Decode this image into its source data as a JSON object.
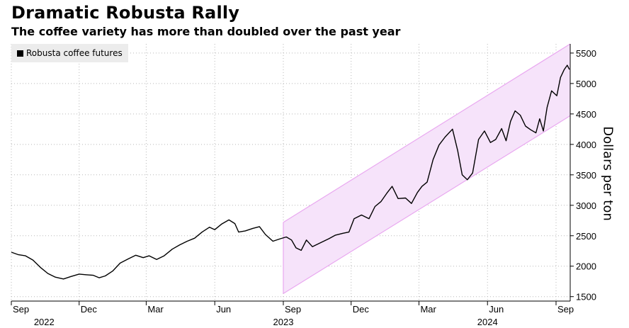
{
  "title": "Dramatic Robusta Rally",
  "subtitle": "The coffee variety has more than doubled over the past year",
  "chart_data": {
    "type": "line",
    "title": "Dramatic Robusta Rally",
    "subtitle": "The coffee variety has more than doubled over the past year",
    "ylabel": "Dollars per ton",
    "xlabel": "",
    "ylim": [
      1450,
      5650
    ],
    "y_ticks": [
      1500,
      2000,
      2500,
      3000,
      3500,
      4000,
      4500,
      5000,
      5500
    ],
    "x_range": [
      "2022-09-01",
      "2024-09-20"
    ],
    "x_ticks": [
      {
        "date": "2022-09-01",
        "label": "Sep"
      },
      {
        "date": "2022-12-01",
        "label": "Dec"
      },
      {
        "date": "2023-03-01",
        "label": "Mar"
      },
      {
        "date": "2023-06-01",
        "label": "Jun"
      },
      {
        "date": "2023-09-01",
        "label": "Sep"
      },
      {
        "date": "2023-12-01",
        "label": "Dec"
      },
      {
        "date": "2024-03-01",
        "label": "Mar"
      },
      {
        "date": "2024-06-01",
        "label": "Jun"
      },
      {
        "date": "2024-09-01",
        "label": "Sep"
      }
    ],
    "year_labels": [
      {
        "date": "2022-10-15",
        "label": "2022"
      },
      {
        "date": "2023-09-01",
        "label": "2023"
      },
      {
        "date": "2024-06-01",
        "label": "2024"
      }
    ],
    "grid": true,
    "legend": {
      "position": "top-left",
      "entries": [
        "Robusta coffee futures"
      ]
    },
    "series": [
      {
        "name": "Robusta coffee futures",
        "color": "#000000",
        "points": [
          [
            "2022-09-01",
            2230
          ],
          [
            "2022-09-10",
            2190
          ],
          [
            "2022-09-20",
            2170
          ],
          [
            "2022-09-30",
            2100
          ],
          [
            "2022-10-10",
            1980
          ],
          [
            "2022-10-20",
            1880
          ],
          [
            "2022-10-30",
            1820
          ],
          [
            "2022-11-10",
            1790
          ],
          [
            "2022-11-20",
            1830
          ],
          [
            "2022-12-01",
            1870
          ],
          [
            "2022-12-10",
            1860
          ],
          [
            "2022-12-20",
            1850
          ],
          [
            "2022-12-28",
            1810
          ],
          [
            "2023-01-05",
            1840
          ],
          [
            "2023-01-15",
            1920
          ],
          [
            "2023-01-25",
            2050
          ],
          [
            "2023-02-05",
            2120
          ],
          [
            "2023-02-15",
            2180
          ],
          [
            "2023-02-25",
            2140
          ],
          [
            "2023-03-05",
            2170
          ],
          [
            "2023-03-15",
            2110
          ],
          [
            "2023-03-25",
            2170
          ],
          [
            "2023-04-05",
            2280
          ],
          [
            "2023-04-15",
            2350
          ],
          [
            "2023-04-25",
            2410
          ],
          [
            "2023-05-05",
            2460
          ],
          [
            "2023-05-15",
            2560
          ],
          [
            "2023-05-25",
            2640
          ],
          [
            "2023-06-01",
            2600
          ],
          [
            "2023-06-10",
            2690
          ],
          [
            "2023-06-20",
            2760
          ],
          [
            "2023-06-28",
            2700
          ],
          [
            "2023-07-03",
            2560
          ],
          [
            "2023-07-12",
            2580
          ],
          [
            "2023-07-22",
            2620
          ],
          [
            "2023-07-31",
            2650
          ],
          [
            "2023-08-08",
            2520
          ],
          [
            "2023-08-18",
            2410
          ],
          [
            "2023-08-28",
            2450
          ],
          [
            "2023-09-05",
            2480
          ],
          [
            "2023-09-12",
            2430
          ],
          [
            "2023-09-18",
            2300
          ],
          [
            "2023-09-25",
            2260
          ],
          [
            "2023-10-02",
            2430
          ],
          [
            "2023-10-10",
            2320
          ],
          [
            "2023-10-20",
            2380
          ],
          [
            "2023-11-01",
            2450
          ],
          [
            "2023-11-10",
            2510
          ],
          [
            "2023-11-20",
            2540
          ],
          [
            "2023-11-28",
            2560
          ],
          [
            "2023-12-05",
            2780
          ],
          [
            "2023-12-15",
            2840
          ],
          [
            "2023-12-25",
            2780
          ],
          [
            "2024-01-02",
            2980
          ],
          [
            "2024-01-10",
            3060
          ],
          [
            "2024-01-18",
            3200
          ],
          [
            "2024-01-25",
            3310
          ],
          [
            "2024-02-02",
            3110
          ],
          [
            "2024-02-12",
            3120
          ],
          [
            "2024-02-20",
            3030
          ],
          [
            "2024-02-28",
            3210
          ],
          [
            "2024-03-05",
            3310
          ],
          [
            "2024-03-12",
            3380
          ],
          [
            "2024-03-20",
            3750
          ],
          [
            "2024-03-28",
            3990
          ],
          [
            "2024-04-05",
            4120
          ],
          [
            "2024-04-15",
            4250
          ],
          [
            "2024-04-22",
            3900
          ],
          [
            "2024-04-28",
            3500
          ],
          [
            "2024-05-05",
            3420
          ],
          [
            "2024-05-12",
            3530
          ],
          [
            "2024-05-20",
            4080
          ],
          [
            "2024-05-28",
            4220
          ],
          [
            "2024-06-05",
            4030
          ],
          [
            "2024-06-12",
            4080
          ],
          [
            "2024-06-20",
            4260
          ],
          [
            "2024-06-26",
            4060
          ],
          [
            "2024-07-02",
            4380
          ],
          [
            "2024-07-08",
            4550
          ],
          [
            "2024-07-15",
            4480
          ],
          [
            "2024-07-22",
            4300
          ],
          [
            "2024-07-29",
            4240
          ],
          [
            "2024-08-05",
            4190
          ],
          [
            "2024-08-10",
            4420
          ],
          [
            "2024-08-15",
            4220
          ],
          [
            "2024-08-20",
            4610
          ],
          [
            "2024-08-26",
            4880
          ],
          [
            "2024-09-02",
            4800
          ],
          [
            "2024-09-07",
            5100
          ],
          [
            "2024-09-12",
            5230
          ],
          [
            "2024-09-16",
            5300
          ],
          [
            "2024-09-19",
            5230
          ]
        ]
      }
    ],
    "channel": {
      "color": "#e9a8f0",
      "start_date": "2023-09-01",
      "end_date": "2024-09-20",
      "upper": [
        2720,
        5650
      ],
      "lower": [
        1550,
        4470
      ]
    }
  },
  "legend_label": "Robusta coffee futures"
}
